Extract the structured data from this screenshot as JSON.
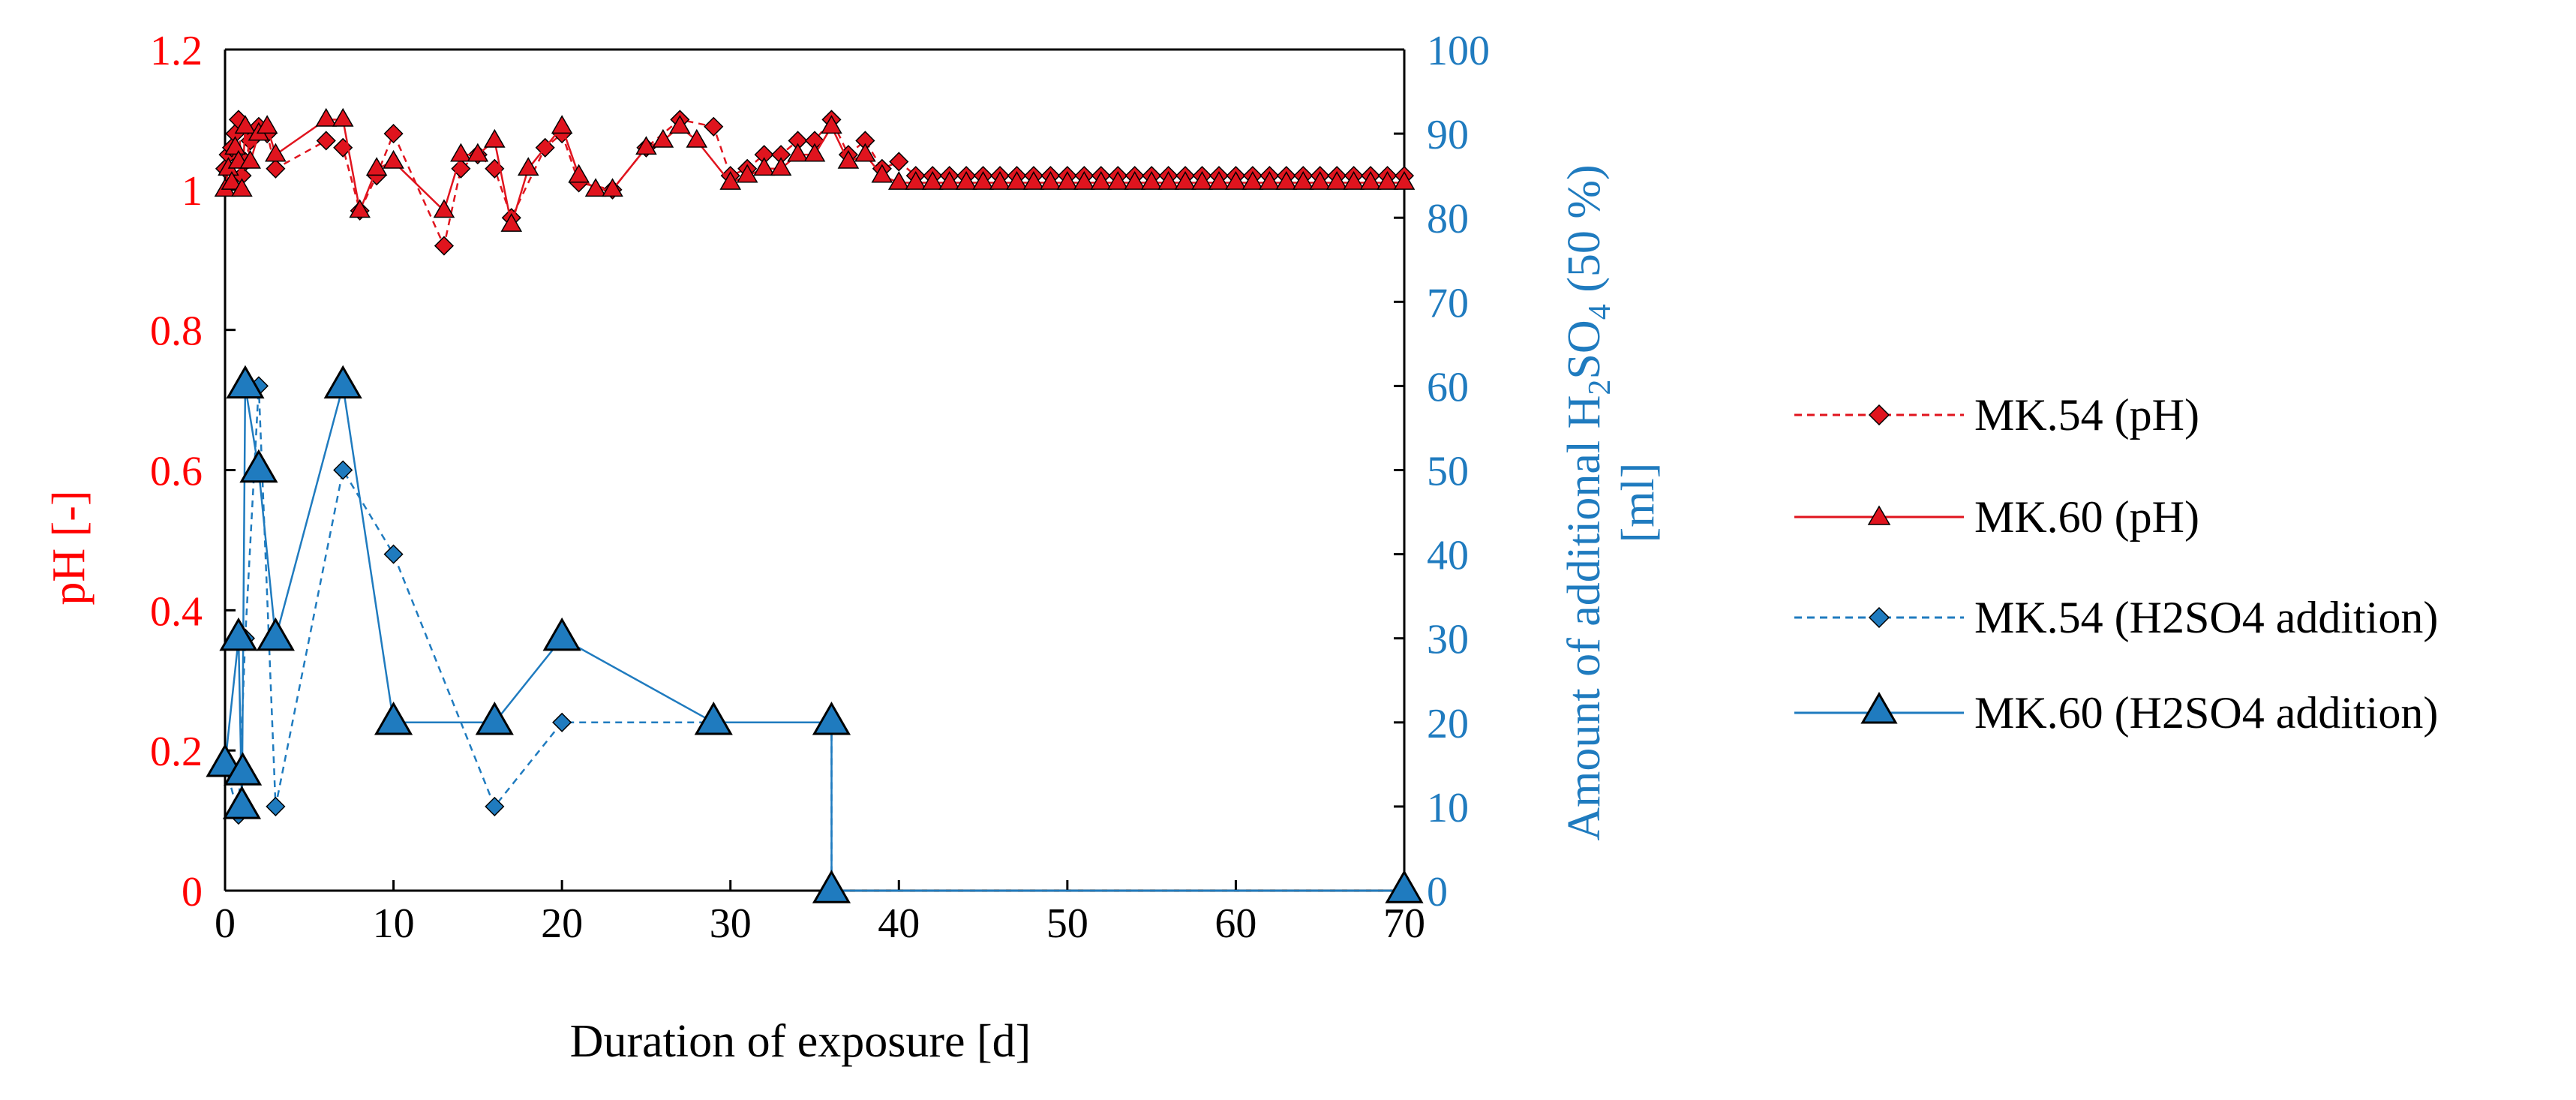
{
  "chart_data": {
    "type": "line",
    "title": "",
    "xlabel": "Duration of exposure [d]",
    "ylabel_left": "pH [-]",
    "ylabel_right": {
      "line1": "Amount of additional H",
      "sub2": "2",
      "mid": "SO",
      "sub4": "4",
      "tail": " (50 %)",
      "line2": "[ml]"
    },
    "xlim": [
      0,
      70
    ],
    "ylim_left": [
      0,
      1.2
    ],
    "ylim_right": [
      0,
      100
    ],
    "x_ticks": [
      "0",
      "10",
      "20",
      "30",
      "40",
      "50",
      "60",
      "70"
    ],
    "y_left_ticks": [
      "0",
      "0.2",
      "0.4",
      "0.6",
      "0.8",
      "1",
      "1.2"
    ],
    "y_right_ticks": [
      "0",
      "10",
      "20",
      "30",
      "40",
      "50",
      "60",
      "70",
      "80",
      "90",
      "100"
    ],
    "colors": {
      "left_axis": "#ff0000",
      "right_axis": "#1f7bbf",
      "ph_marker": "#e0141e",
      "h2so4_marker": "#1f7bbf"
    },
    "series": [
      {
        "name": "MK.54 (pH)",
        "axis": "left",
        "marker": "diamond",
        "dashed": true,
        "x": [
          0,
          0.2,
          0.4,
          0.6,
          0.8,
          1,
          1.2,
          1.5,
          2,
          2.5,
          3,
          6,
          7,
          8,
          9,
          10,
          13,
          14,
          15,
          16,
          17,
          19,
          20,
          21,
          23,
          25,
          27,
          29,
          30,
          31,
          32,
          33,
          34,
          35,
          36,
          37,
          38,
          39,
          40,
          41,
          42,
          43,
          44,
          45,
          46,
          47,
          48,
          49,
          50,
          51,
          52,
          53,
          54,
          55,
          56,
          57,
          58,
          59,
          60,
          61,
          62,
          63,
          64,
          65,
          66,
          67,
          68,
          69,
          70
        ],
        "y": [
          1.03,
          1.05,
          1.06,
          1.08,
          1.1,
          1.02,
          1.04,
          1.07,
          1.09,
          1.08,
          1.03,
          1.07,
          1.06,
          0.97,
          1.02,
          1.08,
          0.92,
          1.03,
          1.05,
          1.03,
          0.96,
          1.06,
          1.08,
          1.01,
          1.0,
          1.06,
          1.1,
          1.09,
          1.02,
          1.03,
          1.05,
          1.05,
          1.07,
          1.07,
          1.1,
          1.05,
          1.07,
          1.03,
          1.04,
          1.02,
          1.02,
          1.02,
          1.02,
          1.02,
          1.02,
          1.02,
          1.02,
          1.02,
          1.02,
          1.02,
          1.02,
          1.02,
          1.02,
          1.02,
          1.02,
          1.02,
          1.02,
          1.02,
          1.02,
          1.02,
          1.02,
          1.02,
          1.02,
          1.02,
          1.02,
          1.02,
          1.02,
          1.02,
          1.02
        ]
      },
      {
        "name": "MK.60 (pH)",
        "axis": "left",
        "marker": "triangle",
        "dashed": false,
        "x": [
          0,
          0.2,
          0.4,
          0.6,
          0.8,
          1,
          1.2,
          1.5,
          2,
          2.5,
          3,
          6,
          7,
          8,
          9,
          10,
          13,
          14,
          15,
          16,
          17,
          18,
          20,
          21,
          22,
          23,
          25,
          26,
          27,
          28,
          30,
          31,
          32,
          33,
          34,
          35,
          36,
          37,
          38,
          39,
          40,
          41,
          42,
          43,
          44,
          45,
          46,
          47,
          48,
          49,
          50,
          51,
          52,
          53,
          54,
          55,
          56,
          57,
          58,
          59,
          60,
          61,
          62,
          63,
          64,
          65,
          66,
          67,
          68,
          69,
          70
        ],
        "y": [
          1.0,
          1.03,
          1.01,
          1.06,
          1.04,
          1.0,
          1.09,
          1.04,
          1.08,
          1.09,
          1.05,
          1.1,
          1.1,
          0.97,
          1.03,
          1.04,
          0.97,
          1.05,
          1.05,
          1.07,
          0.95,
          1.03,
          1.09,
          1.02,
          1.0,
          1.0,
          1.06,
          1.07,
          1.09,
          1.07,
          1.01,
          1.02,
          1.03,
          1.03,
          1.05,
          1.05,
          1.09,
          1.04,
          1.05,
          1.02,
          1.01,
          1.01,
          1.01,
          1.01,
          1.01,
          1.01,
          1.01,
          1.01,
          1.01,
          1.01,
          1.01,
          1.01,
          1.01,
          1.01,
          1.01,
          1.01,
          1.01,
          1.01,
          1.01,
          1.01,
          1.01,
          1.01,
          1.01,
          1.01,
          1.01,
          1.01,
          1.01,
          1.01,
          1.01,
          1.01,
          1.01
        ]
      },
      {
        "name": "MK.54 (H2SO4 addition)",
        "axis": "right",
        "marker": "diamond",
        "dashed": true,
        "x": [
          0,
          0.8,
          1.2,
          2,
          3,
          7,
          10,
          16,
          20,
          29,
          36,
          36,
          70
        ],
        "y": [
          15,
          9,
          30,
          60,
          10,
          50,
          40,
          10,
          20,
          20,
          20,
          0,
          0
        ]
      },
      {
        "name": "MK.60 (H2SO4 addition)",
        "axis": "right",
        "marker": "triangle-large",
        "dashed": false,
        "x": [
          0,
          0.8,
          1,
          1.2,
          2,
          3,
          7,
          10,
          16,
          20,
          29,
          36,
          36,
          70
        ],
        "y": [
          15,
          30,
          10,
          60,
          50,
          30,
          60,
          20,
          20,
          30,
          20,
          20,
          0,
          0
        ],
        "marker_x": [
          0,
          0.8,
          1,
          1.05,
          1.2,
          2,
          3,
          7,
          10,
          16,
          20,
          29,
          36,
          36,
          70
        ],
        "marker_y": [
          15,
          30,
          10,
          14,
          60,
          50,
          30,
          60,
          20,
          20,
          30,
          20,
          20,
          0,
          0
        ]
      }
    ],
    "legend": {
      "position": "right",
      "entries": [
        "MK.54 (pH)",
        "MK.60 (pH)",
        "MK.54 (H2SO4 addition)",
        "MK.60 (H2SO4 addition)"
      ]
    }
  }
}
